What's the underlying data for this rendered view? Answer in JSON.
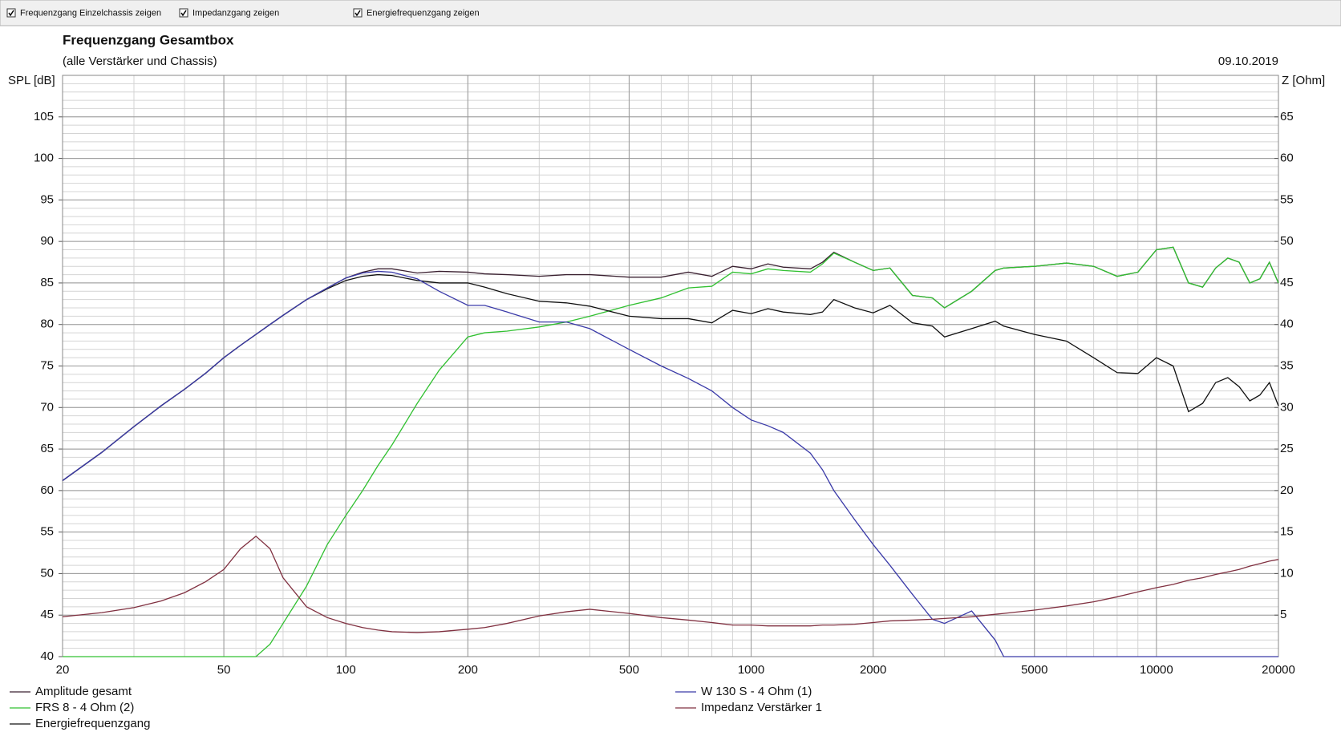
{
  "toolbar": {
    "checkboxes": [
      {
        "label": "Frequenzgang Einzelchassis zeigen",
        "checked": true
      },
      {
        "label": "Impedanzgang zeigen",
        "checked": true
      },
      {
        "label": "Energiefrequenzgang zeigen",
        "checked": true
      }
    ]
  },
  "chart_data": {
    "type": "line",
    "title": "Frequenzgang Gesamtbox",
    "subtitle": "(alle Verstärker und Chassis)",
    "date": "09.10.2019",
    "y_label": "SPL [dB]",
    "y2_label": "Z [Ohm]",
    "xscale": "log",
    "grid": true,
    "minor_grid": true,
    "xlim": [
      20,
      20000
    ],
    "xticks": [
      20,
      50,
      100,
      200,
      500,
      1000,
      2000,
      5000,
      10000,
      20000
    ],
    "ylim": [
      40,
      110
    ],
    "yticks": [
      40,
      45,
      50,
      55,
      60,
      65,
      70,
      75,
      80,
      85,
      90,
      95,
      100,
      105
    ],
    "y2lim": [
      0,
      70
    ],
    "y2ticks": [
      5,
      10,
      15,
      20,
      25,
      30,
      35,
      40,
      45,
      50,
      55,
      60,
      65
    ],
    "x": [
      20,
      25,
      30,
      35,
      40,
      45,
      50,
      55,
      60,
      65,
      70,
      80,
      90,
      100,
      110,
      120,
      130,
      150,
      170,
      200,
      220,
      250,
      300,
      350,
      400,
      500,
      600,
      700,
      800,
      900,
      1000,
      1100,
      1200,
      1400,
      1500,
      1600,
      1800,
      2000,
      2200,
      2500,
      2800,
      3000,
      3500,
      4000,
      4200,
      5000,
      6000,
      7000,
      8000,
      9000,
      10000,
      11000,
      12000,
      13000,
      14000,
      15000,
      16000,
      17000,
      18000,
      19000,
      20000
    ],
    "series": [
      {
        "name": "Amplitude gesamt",
        "color": "#3a2030",
        "values": [
          61.2,
          64.6,
          67.7,
          70.2,
          72.2,
          74.1,
          76,
          77.5,
          78.8,
          80,
          81.1,
          83,
          84.4,
          85.6,
          86.3,
          86.7,
          86.7,
          86.2,
          86.4,
          86.3,
          86.1,
          86,
          85.8,
          86,
          86,
          85.7,
          85.7,
          86.3,
          85.8,
          87,
          86.7,
          87.3,
          86.9,
          86.7,
          87.5,
          88.7,
          87.5,
          86.5,
          86.8,
          83.5,
          83.2,
          82,
          84,
          86.5,
          86.8,
          87,
          87.4,
          87,
          85.8,
          86.3,
          89,
          89.3,
          85,
          84.5,
          86.8,
          88,
          87.5,
          85,
          85.5,
          87.5,
          85
        ]
      },
      {
        "name": "FRS 8 - 4 Ohm (2)",
        "color": "#30c030",
        "values": [
          40,
          40,
          40,
          40,
          40,
          40,
          40,
          40,
          40,
          41.5,
          44,
          48.5,
          53.5,
          57,
          60,
          63,
          65.5,
          70.5,
          74.5,
          78.5,
          79,
          79.2,
          79.7,
          80.3,
          81,
          82.3,
          83.2,
          84.4,
          84.6,
          86.3,
          86.1,
          86.7,
          86.5,
          86.3,
          87.3,
          88.6,
          87.5,
          86.5,
          86.8,
          83.5,
          83.2,
          82,
          84,
          86.5,
          86.8,
          87,
          87.4,
          87,
          85.8,
          86.3,
          89,
          89.3,
          85,
          84.5,
          86.8,
          88,
          87.5,
          85,
          85.5,
          87.5,
          85
        ]
      },
      {
        "name": "Energiefrequenzgang",
        "color": "#101010",
        "values": [
          61.2,
          64.6,
          67.7,
          70.2,
          72.2,
          74.1,
          76,
          77.5,
          78.8,
          80,
          81.1,
          83,
          84.3,
          85.3,
          85.8,
          86,
          85.9,
          85.3,
          85,
          85,
          84.5,
          83.7,
          82.8,
          82.6,
          82.2,
          81,
          80.7,
          80.7,
          80.2,
          81.7,
          81.3,
          81.9,
          81.5,
          81.2,
          81.5,
          83,
          82,
          81.4,
          82.3,
          80.2,
          79.8,
          78.5,
          79.5,
          80.4,
          79.8,
          78.8,
          78,
          76,
          74.2,
          74.1,
          76,
          75,
          69.5,
          70.5,
          73,
          73.6,
          72.5,
          70.8,
          71.5,
          73,
          70.2
        ]
      },
      {
        "name": "W 130 S - 4 Ohm (1)",
        "color": "#3a3aa8",
        "values": [
          61.2,
          64.6,
          67.7,
          70.2,
          72.2,
          74.1,
          76,
          77.5,
          78.8,
          80,
          81.1,
          83,
          84.4,
          85.6,
          86.2,
          86.4,
          86.3,
          85.5,
          84,
          82.3,
          82.3,
          81.5,
          80.3,
          80.3,
          79.5,
          77,
          75,
          73.5,
          72,
          70,
          68.5,
          67.8,
          67,
          64.5,
          62.5,
          60,
          56.5,
          53.5,
          51,
          47.5,
          44.5,
          44,
          45.5,
          42,
          40,
          40,
          40,
          40,
          40,
          40,
          40,
          40,
          40,
          40,
          40,
          40,
          40,
          40,
          40,
          40,
          40
        ]
      },
      {
        "name": "Impedanz Verstärker 1",
        "color": "#803040",
        "axis": "y2",
        "values": [
          4.8,
          5.3,
          5.9,
          6.7,
          7.7,
          9,
          10.5,
          13,
          14.5,
          13,
          9.5,
          6,
          4.7,
          4,
          3.5,
          3.2,
          3,
          2.9,
          3,
          3.3,
          3.5,
          4,
          4.9,
          5.4,
          5.7,
          5.2,
          4.7,
          4.4,
          4.1,
          3.8,
          3.8,
          3.7,
          3.7,
          3.7,
          3.8,
          3.8,
          3.9,
          4.1,
          4.3,
          4.4,
          4.5,
          4.6,
          4.8,
          5.1,
          5.2,
          5.6,
          6.1,
          6.6,
          7.2,
          7.8,
          8.3,
          8.7,
          9.2,
          9.5,
          9.9,
          10.2,
          10.5,
          10.9,
          11.2,
          11.5,
          11.7
        ]
      }
    ]
  }
}
